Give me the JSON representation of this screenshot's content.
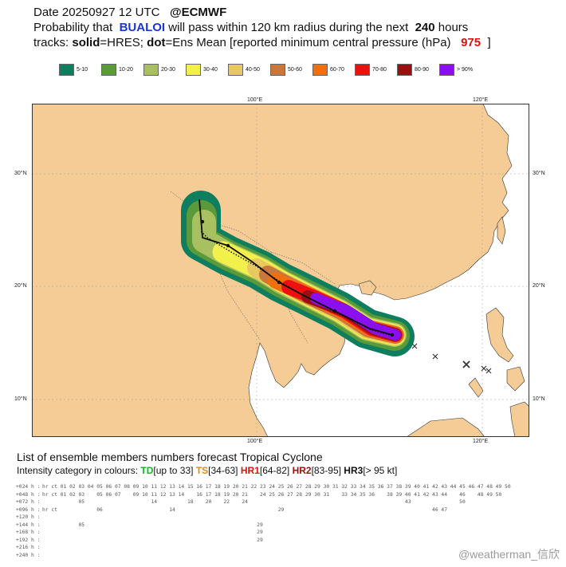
{
  "header": {
    "line1_prefix": "Date 20250927 12 UTC",
    "line1_suffix": "@ECMWF",
    "line2_a": "Probability that",
    "storm_name": "BUALOI",
    "line2_b": "will pass within 120 km radius during the next",
    "hours": "240",
    "line2_c": "hours",
    "line3_a": "tracks:",
    "solid_label": "solid",
    "line3_b": "=HRES;",
    "dot_label": "dot",
    "line3_c": "=Ens Mean [reported minimum central pressure (hPa)",
    "pressure": "975",
    "line3_d": "]"
  },
  "legend": [
    {
      "label": "5-10",
      "color": "#0e7e5e"
    },
    {
      "label": "10-20",
      "color": "#5a9a3a"
    },
    {
      "label": "20-30",
      "color": "#a8c060"
    },
    {
      "label": "30-40",
      "color": "#f2f04a"
    },
    {
      "label": "40-50",
      "color": "#e8c860"
    },
    {
      "label": "50-60",
      "color": "#c8783a"
    },
    {
      "label": "60-70",
      "color": "#f07010"
    },
    {
      "label": "70-80",
      "color": "#ee1010"
    },
    {
      "label": "80-90",
      "color": "#9a1010"
    },
    {
      "label": "> 90%",
      "color": "#8a10f0"
    }
  ],
  "map": {
    "lon_labels": [
      "100°E",
      "120°E"
    ],
    "lat_labels": [
      "30°N",
      "20°N",
      "10°N"
    ],
    "land_color": "#f5cc96",
    "sea_color": "#ffffff"
  },
  "ensemble": {
    "title": "List of ensemble members numbers forecast Tropical Cyclone",
    "intensity_prefix": "Intensity category in colours:",
    "td": "TD",
    "td_range": "[up to 33]",
    "ts": "TS",
    "ts_range": "[34-63]",
    "hr1": "HR1",
    "hr1_range": "[64-82]",
    "hr2": "HR2",
    "hr2_range": "[83-95]",
    "hr3": "HR3",
    "hr3_range": "[> 95 kt]",
    "rows": [
      {
        "label": "+024 h :",
        "values": "hr ct 01 02 03 04 05 06 07 08 09 10 11 12 13 14 15 16 17 18 19 20 21 22 23 24 25 26 27 28 29 30 31 32 33 34 35 36 37 38 39 40 41 42 43 44 45 46 47 48 49 50"
      },
      {
        "label": "+048 h :",
        "values": "hr ct 01 02 03    05 06 07    09 10 11 12 13 14    16 17 18 19 20 21    24 25 26 27 28 29 30 31    33 34 35 36    38 39 40 41 42 43 44    46    48 49 50"
      },
      {
        "label": "+072 h :",
        "values": "            05                      14          18    20    22    24                                                    43                50"
      },
      {
        "label": "+096 h :",
        "values": "hr ct             06                      14                                  29                                                 46 47"
      },
      {
        "label": "+120 h :",
        "values": ""
      },
      {
        "label": "+144 h :",
        "values": "            05                                                         29"
      },
      {
        "label": "+168 h :",
        "values": "                                                                       29"
      },
      {
        "label": "+192 h :",
        "values": "                                                                       29"
      },
      {
        "label": "+216 h :",
        "values": ""
      },
      {
        "label": "+240 h :",
        "values": ""
      }
    ]
  },
  "watermark": "@weatherman_信欣"
}
